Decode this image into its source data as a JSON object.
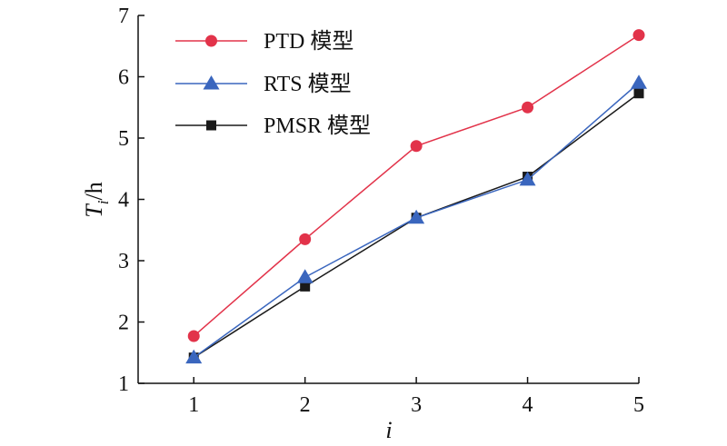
{
  "chart_data": {
    "type": "line",
    "title": "",
    "xlabel": "i",
    "ylabel": {
      "main": "T",
      "sub": "i",
      "unit": "/h"
    },
    "x": [
      1,
      2,
      3,
      4,
      5
    ],
    "xticks": [
      "1",
      "2",
      "3",
      "4",
      "5"
    ],
    "yticks": [
      "1",
      "2",
      "3",
      "4",
      "5",
      "6",
      "7"
    ],
    "xlim": [
      0.5,
      5.0
    ],
    "ylim": [
      1,
      7
    ],
    "grid": false,
    "legend_position": "top-left",
    "series": [
      {
        "name": "PTD 模型",
        "color": "#e2334a",
        "marker": "circle",
        "values": [
          1.77,
          3.35,
          4.87,
          5.5,
          6.68
        ]
      },
      {
        "name": "RTS 模型",
        "color": "#3a66be",
        "marker": "triangle",
        "values": [
          1.42,
          2.73,
          3.7,
          4.32,
          5.9
        ]
      },
      {
        "name": "PMSR 模型",
        "color": "#1a1a1a",
        "marker": "square",
        "values": [
          1.42,
          2.58,
          3.7,
          4.37,
          5.73
        ]
      }
    ]
  }
}
